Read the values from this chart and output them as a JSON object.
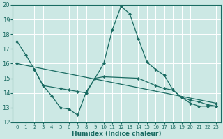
{
  "xlabel": "Humidex (Indice chaleur)",
  "bg_color": "#cce8e4",
  "grid_color": "#ffffff",
  "line_color": "#1a6b62",
  "xlim": [
    -0.5,
    23.5
  ],
  "ylim": [
    12,
    20
  ],
  "xticks": [
    0,
    1,
    2,
    3,
    4,
    5,
    6,
    7,
    8,
    9,
    10,
    11,
    12,
    13,
    14,
    15,
    16,
    17,
    18,
    19,
    20,
    21,
    22,
    23
  ],
  "yticks": [
    12,
    13,
    14,
    15,
    16,
    17,
    18,
    19,
    20
  ],
  "series1_x": [
    0,
    1,
    2,
    3,
    4,
    5,
    6,
    7,
    8,
    9,
    10,
    11,
    12,
    13,
    14,
    15,
    16,
    17,
    18,
    19,
    20,
    21,
    22,
    23
  ],
  "series1_y": [
    17.5,
    16.6,
    15.6,
    14.5,
    13.8,
    13.0,
    12.9,
    12.5,
    14.1,
    15.0,
    16.0,
    18.3,
    19.9,
    19.4,
    17.7,
    16.1,
    15.6,
    15.2,
    14.2,
    13.7,
    13.3,
    13.1,
    13.1,
    13.1
  ],
  "series2_x": [
    2,
    3,
    5,
    6,
    7,
    8,
    9,
    10,
    14,
    16,
    17,
    18,
    19,
    20,
    21,
    22,
    23
  ],
  "series2_y": [
    15.6,
    14.5,
    14.3,
    14.2,
    14.1,
    14.0,
    15.0,
    15.1,
    15.0,
    14.5,
    14.3,
    14.2,
    13.7,
    13.5,
    13.4,
    13.2,
    13.1
  ],
  "series3_x": [
    0,
    23
  ],
  "series3_y": [
    16.0,
    13.3
  ]
}
